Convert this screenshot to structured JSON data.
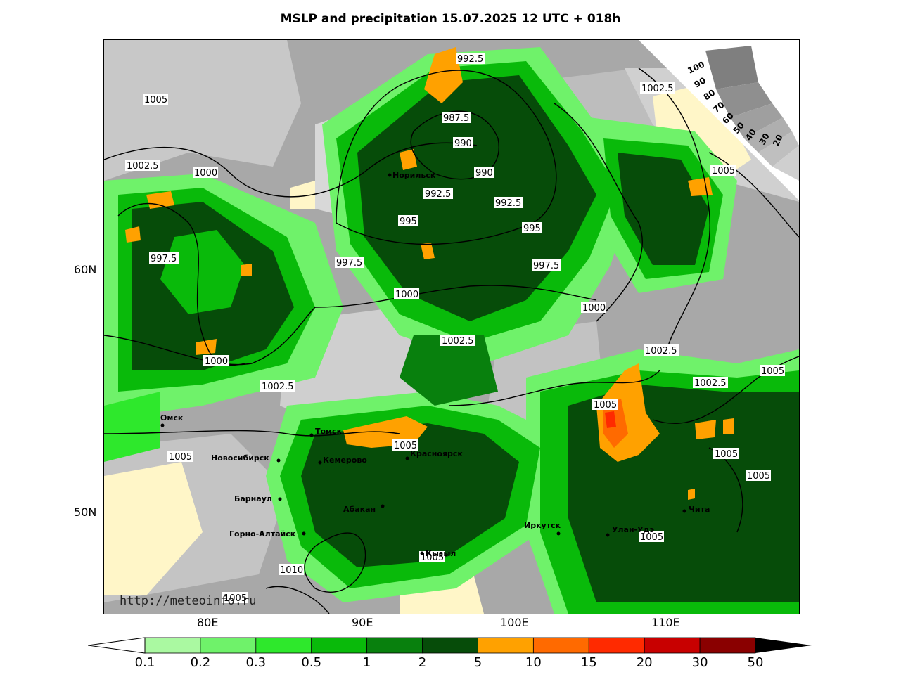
{
  "title": "MSLP and precipitation 15.07.2025 12 UTC + 018h",
  "watermark": "http://meteoinfo.ru",
  "axes": {
    "lat_labels": [
      "60N",
      "50N"
    ],
    "lon_labels": [
      "80E",
      "90E",
      "100E",
      "110E"
    ]
  },
  "cloud_scale": {
    "labels": [
      "100",
      "90",
      "80",
      "70",
      "60",
      "50",
      "40",
      "30",
      "20"
    ]
  },
  "colorbar": {
    "labels": [
      "0.1",
      "0.2",
      "0.3",
      "0.5",
      "1",
      "2",
      "5",
      "10",
      "15",
      "20",
      "30",
      "50"
    ],
    "colors": [
      "#ffffff",
      "#aaf9a1",
      "#6ff26a",
      "#2ee82c",
      "#09ba0a",
      "#08800d",
      "#064c09",
      "#ffa100",
      "#ff6a00",
      "#ff2a00",
      "#c80000",
      "#8a0000"
    ]
  },
  "isobar_labels": [
    "992.5",
    "1002.5",
    "1005",
    "987.5",
    "990",
    "990",
    "1002.5",
    "1000",
    "992.5",
    "992.5",
    "1005",
    "995",
    "995",
    "997.5",
    "997.5",
    "997.5",
    "1000",
    "1000",
    "1002.5",
    "1002.5",
    "1000",
    "1005",
    "1002.5",
    "1002.5",
    "1005",
    "1005",
    "1005",
    "1005",
    "1005",
    "1010",
    "1005",
    "1005",
    "1005"
  ],
  "cities": [
    "Норильск",
    "Омск",
    "Томск",
    "Новосибирск",
    "Кемерово",
    "Красноярск",
    "Барнаул",
    "Абакан",
    "Горно-Алтайск",
    "Иркутск",
    "Улан-Удэ",
    "Чита",
    "Кызыл"
  ]
}
